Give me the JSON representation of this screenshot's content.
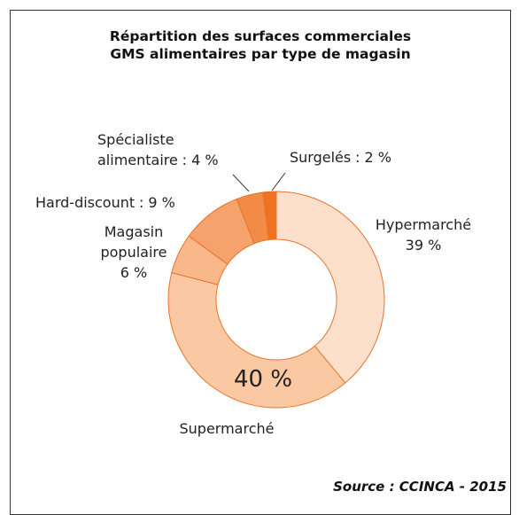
{
  "chart_data": {
    "type": "donut",
    "title": "Répartition des surfaces commerciales",
    "subtitle": "GMS alimentaires par type de magasin",
    "categories": [
      "Hypermarché",
      "Supermarché",
      "Magasin populaire",
      "Hard-discount",
      "Spécialiste alimentaire",
      "Surgelés"
    ],
    "values": [
      39,
      40,
      6,
      9,
      4,
      2
    ],
    "value_labels": [
      "39 %",
      "40 %",
      "6 %",
      ": 9 %",
      ": 4 %",
      ": 2 %"
    ],
    "colors": [
      "#fde0cc",
      "#fbc8a4",
      "#f9b88a",
      "#f6a26c",
      "#f28b46",
      "#ee7222"
    ],
    "source": "Source : CCINCA - 2015"
  }
}
